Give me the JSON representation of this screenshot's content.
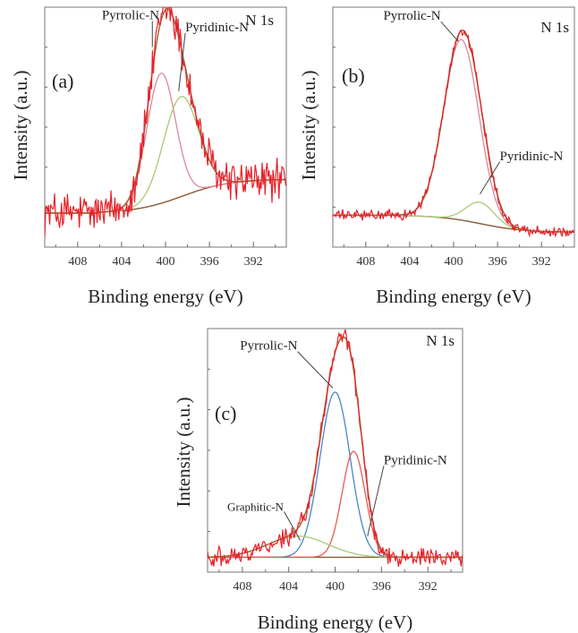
{
  "chart_data": [
    {
      "type": "line",
      "panel_label": "(a)",
      "corner_label": "N 1s",
      "xlabel": "Binding energy (eV)",
      "ylabel": "Intensity (a.u.)",
      "x_ticks": [
        "408",
        "404",
        "400",
        "396",
        "392"
      ],
      "xlim": [
        411,
        389
      ],
      "x_reversed": true,
      "noise_amplitude": 0.085,
      "colors": {
        "raw": "#e8202a",
        "fit": "#9c6a3a",
        "comp1": "#d9899a",
        "comp2": "#a8c878",
        "background": "#8a5a34"
      },
      "components": [
        {
          "name": "Pyrrolic-N",
          "center": 400.4,
          "sigma": 1.3,
          "height": 0.65
        },
        {
          "name": "Pyridinic-N",
          "center": 398.6,
          "sigma": 1.6,
          "height": 0.5
        }
      ],
      "baseline": {
        "start_x": 406.2,
        "start_y": 0.05,
        "end_y": 0.22
      },
      "annotations": [
        {
          "text": "Pyrrolic-N",
          "x": 405.8,
          "y": 1.02,
          "arrow_x": 401.2,
          "arrow_y": 0.88
        },
        {
          "text": "Pyridinic-N",
          "x": 398.2,
          "y": 0.96,
          "arrow_x": 398.8,
          "arrow_y": 0.66
        }
      ]
    },
    {
      "type": "line",
      "panel_label": "(b)",
      "corner_label": "N 1s",
      "xlabel": "Binding energy (eV)",
      "ylabel": "Intensity (a.u.)",
      "x_ticks": [
        "408",
        "404",
        "400",
        "396",
        "392"
      ],
      "xlim": [
        411,
        389
      ],
      "x_reversed": true,
      "noise_amplitude": 0.02,
      "colors": {
        "raw": "#e8202a",
        "fit": "#9c6a3a",
        "comp1": "#d9899a",
        "comp2": "#a8c878",
        "background": "#8a5a34"
      },
      "components": [
        {
          "name": "Pyrrolic-N",
          "center": 399.3,
          "sigma": 1.6,
          "height": 0.85
        },
        {
          "name": "Pyridinic-N",
          "center": 397.6,
          "sigma": 1.3,
          "height": 0.1
        }
      ],
      "baseline": {
        "start_x": 404.5,
        "start_y": 0.1,
        "end_y": 0.02
      },
      "annotations": [
        {
          "text": "Pyrrolic-N",
          "x": 406.4,
          "y": 1.02,
          "arrow_x": 399.6,
          "arrow_y": 0.92
        },
        {
          "text": "Pyridinic-N",
          "x": 395.8,
          "y": 0.36,
          "arrow_x": 397.6,
          "arrow_y": 0.2
        }
      ]
    },
    {
      "type": "line",
      "panel_label": "(c)",
      "corner_label": "N 1s",
      "xlabel": "Binding energy (eV)",
      "ylabel": "Intensity (a.u.)",
      "x_ticks": [
        "408",
        "404",
        "400",
        "396",
        "392"
      ],
      "xlim": [
        411,
        389
      ],
      "x_reversed": true,
      "noise_amplitude": 0.035,
      "colors": {
        "raw": "#e8202a",
        "fit": "#9c6a3a",
        "comp1": "#4a86c8",
        "comp2": "#e85a4e",
        "comp3": "#a8c878",
        "background": "#8a5a34"
      },
      "components": [
        {
          "name": "Pyrrolic-N",
          "center": 400.0,
          "sigma": 1.3,
          "height": 0.78
        },
        {
          "name": "Pyridinic-N",
          "center": 398.4,
          "sigma": 1.0,
          "height": 0.5
        },
        {
          "name": "Graphitic-N",
          "center": 403.2,
          "sigma": 2.6,
          "height": 0.1
        }
      ],
      "baseline": {
        "start_x": 411,
        "start_y": 0.02,
        "end_y": 0.02
      },
      "annotations": [
        {
          "text": "Pyrrolic-N",
          "x": 408.2,
          "y": 1.0,
          "arrow_x": 400.2,
          "arrow_y": 0.82
        },
        {
          "text": "Pyridinic-N",
          "x": 395.8,
          "y": 0.46,
          "arrow_x": 397.2,
          "arrow_y": 0.12
        },
        {
          "text": "Graphitic-N",
          "x": 409.3,
          "y": 0.24,
          "arrow_x": 403.0,
          "arrow_y": 0.1
        }
      ]
    }
  ]
}
